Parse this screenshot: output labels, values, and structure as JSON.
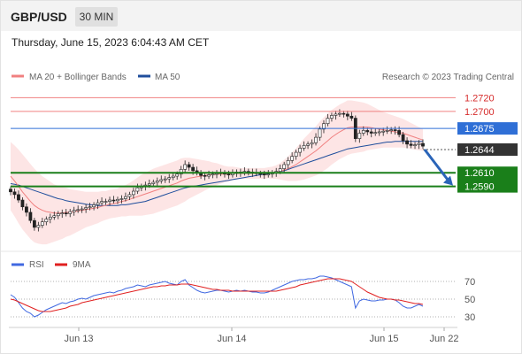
{
  "header": {
    "symbol": "GBP/USD",
    "timeframe": "30 MIN",
    "timestamp": "Thursday, June 15, 2023 6:04:43 AM CET"
  },
  "legend": {
    "ma20": "MA 20 + Bollinger Bands",
    "ma50": "MA 50",
    "copyright": "Research © 2023 Trading Central",
    "rsi": "RSI",
    "ma9": "9MA"
  },
  "colors": {
    "ma20": "#f08080",
    "ma50": "#1f4e9c",
    "support": "#1a7f1a",
    "resistance": "#f08080",
    "pivot": "#2f6fd6",
    "last_price": "#333333",
    "band_fill": "#fde0e0",
    "rsi": "#4169e1",
    "rsi_ma": "#e02020",
    "arrow": "#2a64b8"
  },
  "chart_data": [
    {
      "type": "candlestick",
      "title": "",
      "ylim": [
        1.25,
        1.274
      ],
      "x_labels": [
        "Jun 13",
        "Jun 14",
        "Jun 15",
        "Jun 22"
      ],
      "levels": [
        {
          "value": 1.272,
          "label": "1.2720",
          "kind": "resistance"
        },
        {
          "value": 1.27,
          "label": "1.2700",
          "kind": "resistance"
        },
        {
          "value": 1.2675,
          "label": "1.2675",
          "kind": "pivot"
        },
        {
          "value": 1.2644,
          "label": "1.2644",
          "kind": "last_price"
        },
        {
          "value": 1.261,
          "label": "1.2610",
          "kind": "support"
        },
        {
          "value": 1.259,
          "label": "1.2590",
          "kind": "support"
        }
      ],
      "close_series": [
        1.2582,
        1.2578,
        1.257,
        1.256,
        1.2552,
        1.254,
        1.253,
        1.2533,
        1.2538,
        1.2542,
        1.2545,
        1.2547,
        1.255,
        1.2551,
        1.255,
        1.2553,
        1.2555,
        1.2556,
        1.2557,
        1.2559,
        1.256,
        1.2563,
        1.2566,
        1.2568,
        1.2568,
        1.257,
        1.2569,
        1.2571,
        1.2572,
        1.2575,
        1.2578,
        1.2583,
        1.2588,
        1.259,
        1.2592,
        1.2594,
        1.2596,
        1.2598,
        1.26,
        1.2601,
        1.2603,
        1.2605,
        1.2608,
        1.2615,
        1.2622,
        1.2618,
        1.2613,
        1.261,
        1.2606,
        1.2605,
        1.2607,
        1.2608,
        1.2609,
        1.261,
        1.2608,
        1.2607,
        1.2609,
        1.2611,
        1.261,
        1.2612,
        1.2611,
        1.261,
        1.2609,
        1.2608,
        1.2607,
        1.2608,
        1.261,
        1.2612,
        1.2616,
        1.2622,
        1.2628,
        1.2634,
        1.264,
        1.2646,
        1.265,
        1.2652,
        1.2654,
        1.2662,
        1.2674,
        1.2682,
        1.269,
        1.2694,
        1.2696,
        1.2697,
        1.2696,
        1.2693,
        1.269,
        1.266,
        1.2668,
        1.2672,
        1.267,
        1.2668,
        1.2669,
        1.267,
        1.2671,
        1.2672,
        1.2673,
        1.2672,
        1.2666,
        1.2657,
        1.2652,
        1.265,
        1.2651,
        1.2653,
        1.2649
      ],
      "ma20_series": [
        1.2605,
        1.2598,
        1.259,
        1.2582,
        1.2575,
        1.2568,
        1.2562,
        1.2558,
        1.2555,
        1.2553,
        1.2552,
        1.2551,
        1.2551,
        1.2551,
        1.2552,
        1.2552,
        1.2553,
        1.2554,
        1.2555,
        1.2556,
        1.2557,
        1.2558,
        1.2559,
        1.2561,
        1.2562,
        1.2564,
        1.2565,
        1.2566,
        1.2568,
        1.2569,
        1.2571,
        1.2573,
        1.2575,
        1.2577,
        1.2579,
        1.2581,
        1.2583,
        1.2585,
        1.2587,
        1.2589,
        1.2591,
        1.2593,
        1.2595,
        1.2598,
        1.26,
        1.2602,
        1.2603,
        1.2604,
        1.2605,
        1.2606,
        1.2607,
        1.2607,
        1.2608,
        1.2608,
        1.2608,
        1.2608,
        1.2609,
        1.2609,
        1.2609,
        1.2609,
        1.2609,
        1.2609,
        1.2609,
        1.2609,
        1.2609,
        1.261,
        1.261,
        1.2611,
        1.2612,
        1.2614,
        1.2616,
        1.2619,
        1.2622,
        1.2626,
        1.263,
        1.2634,
        1.2638,
        1.2642,
        1.2647,
        1.2652,
        1.2657,
        1.2662,
        1.2666,
        1.267,
        1.2673,
        1.2676,
        1.2677,
        1.2677,
        1.2677,
        1.2677,
        1.2677,
        1.2676,
        1.2675,
        1.2674,
        1.2673,
        1.2672,
        1.2671,
        1.267,
        1.2669,
        1.2668,
        1.2666,
        1.2664,
        1.2662,
        1.266,
        1.2658
      ],
      "ma50_series": [
        1.2594,
        1.2593,
        1.2592,
        1.259,
        1.2588,
        1.2586,
        1.2584,
        1.2582,
        1.258,
        1.2578,
        1.2576,
        1.2574,
        1.2572,
        1.2571,
        1.2569,
        1.2568,
        1.2567,
        1.2566,
        1.2565,
        1.2564,
        1.2563,
        1.2563,
        1.2562,
        1.2562,
        1.2562,
        1.2562,
        1.2562,
        1.2562,
        1.2563,
        1.2563,
        1.2564,
        1.2565,
        1.2566,
        1.2567,
        1.2568,
        1.257,
        1.2572,
        1.2574,
        1.2576,
        1.2578,
        1.258,
        1.2582,
        1.2584,
        1.2586,
        1.2588,
        1.2589,
        1.259,
        1.2591,
        1.2592,
        1.2593,
        1.2594,
        1.2595,
        1.2596,
        1.2597,
        1.2598,
        1.2599,
        1.26,
        1.2601,
        1.2602,
        1.2603,
        1.2604,
        1.2605,
        1.2606,
        1.2607,
        1.2608,
        1.2609,
        1.261,
        1.2611,
        1.2612,
        1.2613,
        1.2615,
        1.2617,
        1.2619,
        1.2621,
        1.2623,
        1.2625,
        1.2627,
        1.2629,
        1.2631,
        1.2633,
        1.2635,
        1.2637,
        1.2639,
        1.2641,
        1.2643,
        1.2645,
        1.2646,
        1.2647,
        1.2648,
        1.2649,
        1.265,
        1.2651,
        1.2652,
        1.2653,
        1.2654,
        1.2655,
        1.2655,
        1.2656,
        1.2656,
        1.2656,
        1.2656,
        1.2656,
        1.2656,
        1.2656,
        1.2656
      ],
      "bb_width": [
        0.005,
        0.0052,
        0.0054,
        0.0055,
        0.0055,
        0.0055,
        0.0054,
        0.0052,
        0.005,
        0.0048,
        0.0045,
        0.0042,
        0.004,
        0.0038,
        0.0036,
        0.0034,
        0.0032,
        0.003,
        0.0028,
        0.0026,
        0.0025,
        0.0024,
        0.0023,
        0.0022,
        0.0021,
        0.0021,
        0.0021,
        0.0021,
        0.0022,
        0.0023,
        0.0024,
        0.0026,
        0.0028,
        0.003,
        0.0031,
        0.0032,
        0.0033,
        0.0033,
        0.0033,
        0.0033,
        0.0033,
        0.0033,
        0.0033,
        0.0033,
        0.0032,
        0.003,
        0.0028,
        0.0026,
        0.0024,
        0.0022,
        0.002,
        0.0018,
        0.0016,
        0.0014,
        0.0012,
        0.0011,
        0.001,
        0.0009,
        0.0008,
        0.0008,
        0.0008,
        0.0008,
        0.0008,
        0.0008,
        0.0008,
        0.0008,
        0.0009,
        0.001,
        0.0012,
        0.0015,
        0.0018,
        0.0021,
        0.0024,
        0.0027,
        0.003,
        0.0032,
        0.0034,
        0.0036,
        0.0038,
        0.0039,
        0.004,
        0.004,
        0.004,
        0.004,
        0.004,
        0.004,
        0.0039,
        0.0038,
        0.0037,
        0.0036,
        0.0034,
        0.0032,
        0.003,
        0.0028,
        0.0026,
        0.0025,
        0.0024,
        0.0023,
        0.0022,
        0.0021,
        0.002,
        0.0019,
        0.0018,
        0.0017,
        0.0016
      ],
      "forecast_arrow": {
        "from": 1.2644,
        "to": 1.259
      }
    },
    {
      "type": "line",
      "title": "",
      "series_names": [
        "RSI",
        "9MA"
      ],
      "ylim": [
        20,
        80
      ],
      "y_ticks": [
        70,
        50,
        30
      ],
      "rsi_series": [
        55,
        52,
        46,
        40,
        36,
        34,
        30,
        32,
        35,
        38,
        40,
        42,
        44,
        46,
        45,
        47,
        48,
        50,
        51,
        50,
        52,
        54,
        55,
        56,
        57,
        58,
        57,
        59,
        60,
        62,
        63,
        64,
        66,
        65,
        64,
        66,
        67,
        68,
        69,
        70,
        68,
        67,
        66,
        70,
        72,
        66,
        63,
        60,
        58,
        57,
        58,
        59,
        60,
        60,
        59,
        58,
        59,
        60,
        59,
        60,
        59,
        58,
        58,
        57,
        57,
        58,
        60,
        62,
        64,
        66,
        68,
        70,
        71,
        72,
        72,
        73,
        73,
        74,
        76,
        76,
        75,
        74,
        72,
        70,
        68,
        66,
        64,
        40,
        48,
        50,
        49,
        48,
        48,
        49,
        49,
        50,
        50,
        49,
        46,
        42,
        40,
        40,
        42,
        44,
        42
      ],
      "ma9_series": [
        50,
        49,
        47,
        45,
        43,
        41,
        39,
        37,
        36,
        36,
        36,
        37,
        38,
        39,
        40,
        42,
        43,
        44,
        46,
        47,
        48,
        49,
        50,
        51,
        52,
        53,
        54,
        55,
        56,
        57,
        58,
        59,
        60,
        61,
        62,
        63,
        64,
        64,
        65,
        65,
        66,
        66,
        66,
        67,
        67,
        67,
        66,
        65,
        64,
        63,
        62,
        61,
        61,
        60,
        60,
        60,
        59,
        59,
        59,
        59,
        59,
        59,
        59,
        59,
        59,
        59,
        59,
        59,
        60,
        61,
        62,
        63,
        64,
        66,
        67,
        68,
        69,
        70,
        71,
        72,
        73,
        73,
        73,
        73,
        72,
        71,
        70,
        67,
        64,
        61,
        58,
        56,
        54,
        52,
        51,
        50,
        50,
        49,
        49,
        48,
        47,
        46,
        45,
        45,
        44
      ]
    }
  ]
}
